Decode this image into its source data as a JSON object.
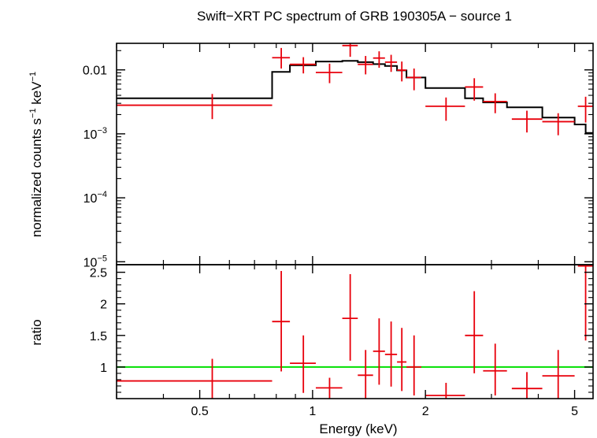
{
  "chart_data": {
    "type": "scatter",
    "title": "Swift−XRT PC spectrum of GRB 190305A − source 1",
    "xlabel": "Energy (keV)",
    "x_scale": "log",
    "xlim": [
      0.3,
      5.6
    ],
    "x_ticks": [
      {
        "value": 0.5,
        "label": "0.5"
      },
      {
        "value": 1,
        "label": "1"
      },
      {
        "value": 2,
        "label": "2"
      },
      {
        "value": 5,
        "label": "5"
      }
    ],
    "top_panel": {
      "ylabel_main": "normalized counts s",
      "ylabel_sup1": "−1",
      "ylabel_mid": " keV",
      "ylabel_sup2": "−1",
      "y_scale": "log",
      "ylim": [
        9e-06,
        0.026
      ],
      "y_ticks": [
        {
          "value": 0.01,
          "label": "0.01",
          "base": "",
          "exp": ""
        },
        {
          "value": 0.001,
          "label": "",
          "base": "10",
          "exp": "−3"
        },
        {
          "value": 0.0001,
          "label": "",
          "base": "10",
          "exp": "−4"
        },
        {
          "value": 1e-05,
          "label": "",
          "base": "10",
          "exp": "−5"
        }
      ],
      "data_points": [
        {
          "xlo": 0.3,
          "xhi": 0.78,
          "x": 0.54,
          "y": 0.0028,
          "ylo": 0.0017,
          "yhi": 0.0042
        },
        {
          "xlo": 0.78,
          "xhi": 0.87,
          "x": 0.825,
          "y": 0.0155,
          "ylo": 0.0105,
          "yhi": 0.022
        },
        {
          "xlo": 0.87,
          "xhi": 1.02,
          "x": 0.945,
          "y": 0.0122,
          "ylo": 0.0088,
          "yhi": 0.0158
        },
        {
          "xlo": 1.02,
          "xhi": 1.2,
          "x": 1.11,
          "y": 0.0091,
          "ylo": 0.0062,
          "yhi": 0.0125
        },
        {
          "xlo": 1.2,
          "xhi": 1.32,
          "x": 1.26,
          "y": 0.024,
          "ylo": 0.016,
          "yhi": 0.026
        },
        {
          "xlo": 1.32,
          "xhi": 1.45,
          "x": 1.385,
          "y": 0.0122,
          "ylo": 0.0085,
          "yhi": 0.0165
        },
        {
          "xlo": 1.45,
          "xhi": 1.56,
          "x": 1.505,
          "y": 0.0153,
          "ylo": 0.0108,
          "yhi": 0.0195
        },
        {
          "xlo": 1.56,
          "xhi": 1.68,
          "x": 1.62,
          "y": 0.0132,
          "ylo": 0.0093,
          "yhi": 0.0172
        },
        {
          "xlo": 1.68,
          "xhi": 1.78,
          "x": 1.73,
          "y": 0.0099,
          "ylo": 0.0066,
          "yhi": 0.0135
        },
        {
          "xlo": 1.78,
          "xhi": 1.95,
          "x": 1.865,
          "y": 0.0076,
          "ylo": 0.0048,
          "yhi": 0.0105
        },
        {
          "xlo": 2.0,
          "xhi": 2.55,
          "x": 2.27,
          "y": 0.0027,
          "ylo": 0.0016,
          "yhi": 0.0037
        },
        {
          "xlo": 2.55,
          "xhi": 2.85,
          "x": 2.7,
          "y": 0.0054,
          "ylo": 0.0033,
          "yhi": 0.0074
        },
        {
          "xlo": 2.85,
          "xhi": 3.3,
          "x": 3.07,
          "y": 0.0032,
          "ylo": 0.0021,
          "yhi": 0.0043
        },
        {
          "xlo": 3.4,
          "xhi": 4.1,
          "x": 3.73,
          "y": 0.0017,
          "ylo": 0.00105,
          "yhi": 0.0023
        },
        {
          "xlo": 4.1,
          "xhi": 5.0,
          "x": 4.52,
          "y": 0.00155,
          "ylo": 0.00095,
          "yhi": 0.0021
        },
        {
          "xlo": 5.1,
          "xhi": 5.6,
          "x": 5.35,
          "y": 0.0027,
          "ylo": 0.0015,
          "yhi": 0.0038
        }
      ],
      "model_steps": [
        {
          "xlo": 0.3,
          "xhi": 0.78,
          "y": 0.0036
        },
        {
          "xlo": 0.78,
          "xhi": 0.87,
          "y": 0.0093
        },
        {
          "xlo": 0.87,
          "xhi": 1.02,
          "y": 0.0118
        },
        {
          "xlo": 1.02,
          "xhi": 1.2,
          "y": 0.0135
        },
        {
          "xlo": 1.2,
          "xhi": 1.32,
          "y": 0.0138
        },
        {
          "xlo": 1.32,
          "xhi": 1.45,
          "y": 0.0132
        },
        {
          "xlo": 1.45,
          "xhi": 1.56,
          "y": 0.0123
        },
        {
          "xlo": 1.56,
          "xhi": 1.68,
          "y": 0.0115
        },
        {
          "xlo": 1.68,
          "xhi": 1.78,
          "y": 0.0098
        },
        {
          "xlo": 1.78,
          "xhi": 2.0,
          "y": 0.0076
        },
        {
          "xlo": 2.0,
          "xhi": 2.55,
          "y": 0.0052
        },
        {
          "xlo": 2.55,
          "xhi": 2.85,
          "y": 0.0036
        },
        {
          "xlo": 2.85,
          "xhi": 3.3,
          "y": 0.0031
        },
        {
          "xlo": 3.3,
          "xhi": 4.1,
          "y": 0.0026
        },
        {
          "xlo": 4.1,
          "xhi": 5.0,
          "y": 0.0018
        },
        {
          "xlo": 5.0,
          "xhi": 5.35,
          "y": 0.0014
        },
        {
          "xlo": 5.35,
          "xhi": 5.6,
          "y": 0.00103
        }
      ]
    },
    "bottom_panel": {
      "ylabel": "ratio",
      "ylim": [
        0.5,
        2.62
      ],
      "y_ticks": [
        {
          "value": 1,
          "label": "1"
        },
        {
          "value": 1.5,
          "label": "1.5"
        },
        {
          "value": 2,
          "label": "2"
        },
        {
          "value": 2.5,
          "label": "2.5"
        }
      ],
      "reference_line": 1,
      "data_points": [
        {
          "xlo": 0.3,
          "xhi": 0.78,
          "x": 0.54,
          "y": 0.78,
          "ylo": 0.5,
          "yhi": 1.13
        },
        {
          "xlo": 0.78,
          "xhi": 0.87,
          "x": 0.825,
          "y": 1.72,
          "ylo": 0.93,
          "yhi": 2.52
        },
        {
          "xlo": 0.87,
          "xhi": 1.02,
          "x": 0.945,
          "y": 1.06,
          "ylo": 0.59,
          "yhi": 1.5
        },
        {
          "xlo": 1.02,
          "xhi": 1.2,
          "x": 1.11,
          "y": 0.67,
          "ylo": 0.5,
          "yhi": 0.83
        },
        {
          "xlo": 1.2,
          "xhi": 1.32,
          "x": 1.26,
          "y": 1.77,
          "ylo": 1.1,
          "yhi": 2.47
        },
        {
          "xlo": 1.32,
          "xhi": 1.45,
          "x": 1.385,
          "y": 0.87,
          "ylo": 0.5,
          "yhi": 1.27
        },
        {
          "xlo": 1.45,
          "xhi": 1.56,
          "x": 1.505,
          "y": 1.25,
          "ylo": 0.72,
          "yhi": 1.77
        },
        {
          "xlo": 1.56,
          "xhi": 1.68,
          "x": 1.62,
          "y": 1.2,
          "ylo": 0.69,
          "yhi": 1.72
        },
        {
          "xlo": 1.68,
          "xhi": 1.78,
          "x": 1.73,
          "y": 1.08,
          "ylo": 0.62,
          "yhi": 1.62
        },
        {
          "xlo": 1.78,
          "xhi": 1.95,
          "x": 1.865,
          "y": 1.0,
          "ylo": 0.55,
          "yhi": 1.5
        },
        {
          "xlo": 2.0,
          "xhi": 2.55,
          "x": 2.27,
          "y": 0.55,
          "ylo": 0.5,
          "yhi": 0.75
        },
        {
          "xlo": 2.55,
          "xhi": 2.85,
          "x": 2.7,
          "y": 1.5,
          "ylo": 0.9,
          "yhi": 2.2
        },
        {
          "xlo": 2.85,
          "xhi": 3.3,
          "x": 3.07,
          "y": 0.94,
          "ylo": 0.55,
          "yhi": 1.37
        },
        {
          "xlo": 3.4,
          "xhi": 4.1,
          "x": 3.73,
          "y": 0.66,
          "ylo": 0.5,
          "yhi": 0.92
        },
        {
          "xlo": 4.1,
          "xhi": 5.0,
          "x": 4.52,
          "y": 0.86,
          "ylo": 0.5,
          "yhi": 1.27
        },
        {
          "xlo": 5.1,
          "xhi": 5.6,
          "x": 5.35,
          "y": 2.6,
          "ylo": 1.42,
          "yhi": 2.62
        }
      ]
    },
    "colors": {
      "data": "#e8000b",
      "model": "#000000",
      "reference": "#00e000",
      "axes": "#000000"
    }
  }
}
